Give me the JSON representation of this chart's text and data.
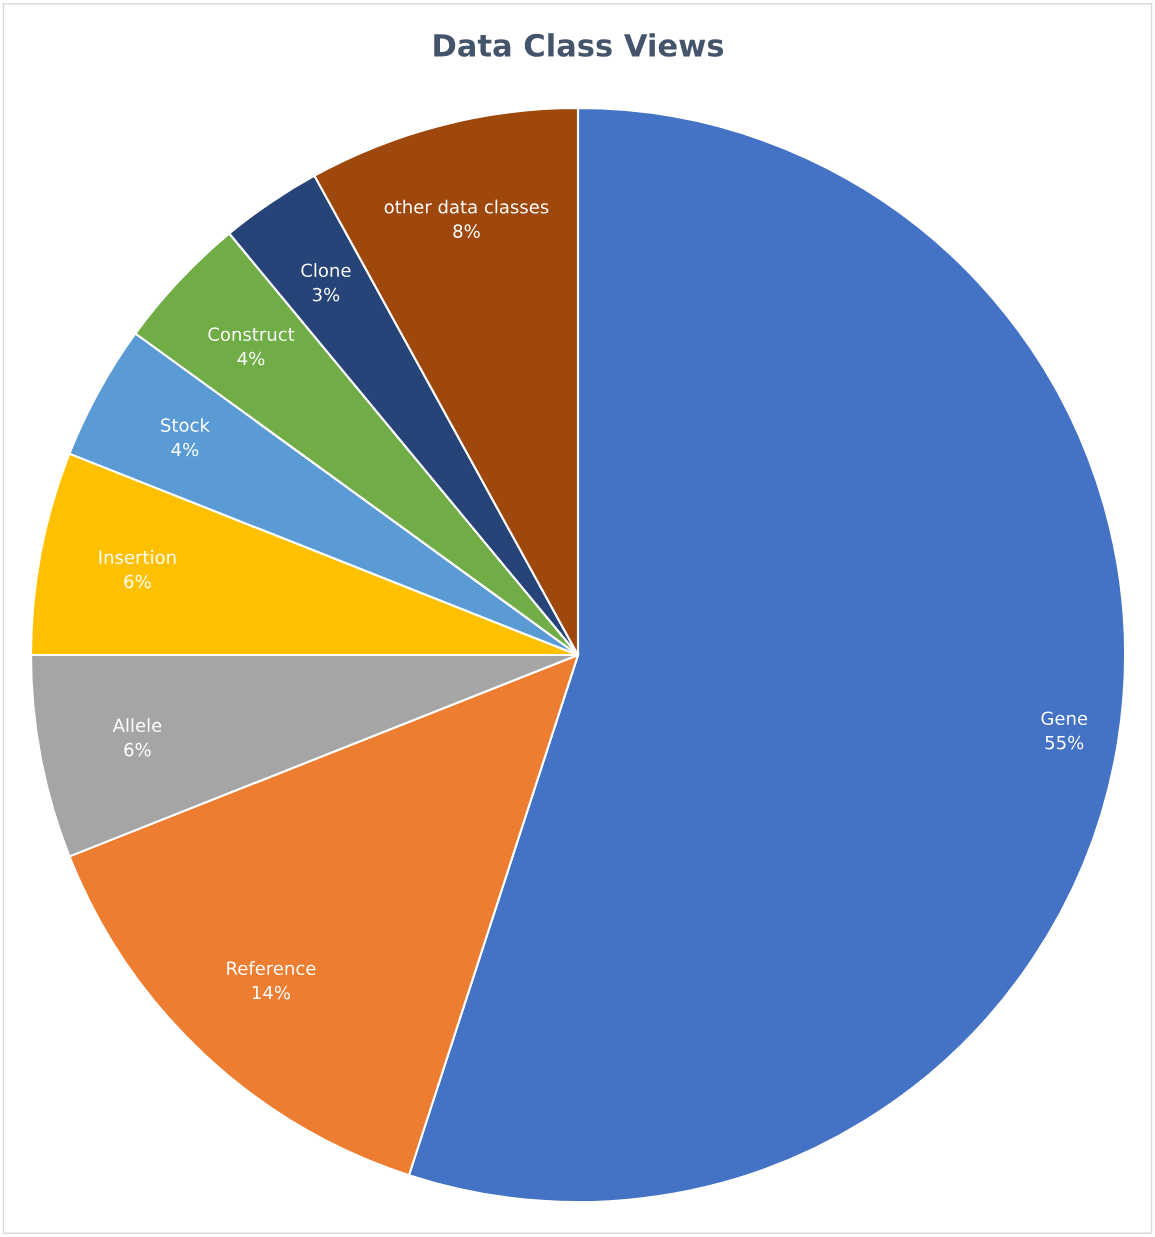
{
  "chart_data": {
    "type": "pie",
    "title": "Data Class Views",
    "categories": [
      "Gene",
      "Reference",
      "Allele",
      "Insertion",
      "Stock",
      "Construct",
      "Clone",
      "other data classes"
    ],
    "values": [
      55,
      14,
      6,
      6,
      4,
      4,
      3,
      8
    ],
    "value_labels": [
      "55%",
      "14%",
      "6%",
      "6%",
      "4%",
      "4%",
      "3%",
      "8%"
    ],
    "colors": [
      "#4472c4",
      "#ed7d31",
      "#a5a5a5",
      "#ffc000",
      "#5b9bd5",
      "#70ad47",
      "#264478",
      "#9e480e"
    ],
    "legend": false
  }
}
